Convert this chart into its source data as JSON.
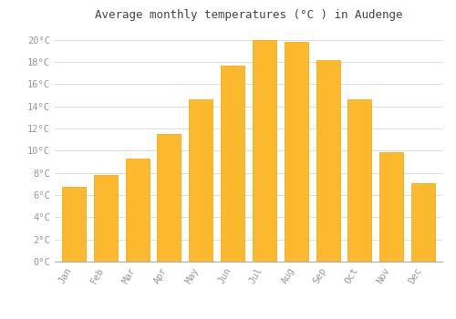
{
  "title": "Average monthly temperatures (°C ) in Audenge",
  "months": [
    "Jan",
    "Feb",
    "Mar",
    "Apr",
    "May",
    "Jun",
    "Jul",
    "Aug",
    "Sep",
    "Oct",
    "Nov",
    "Dec"
  ],
  "values": [
    6.7,
    7.8,
    9.3,
    11.5,
    14.6,
    17.7,
    20.0,
    19.8,
    18.2,
    14.6,
    9.9,
    7.1
  ],
  "bar_color": "#FDB92E",
  "bar_edge_color": "#F0A500",
  "background_color": "#FFFFFF",
  "grid_color": "#DDDDDD",
  "tick_label_color": "#999999",
  "title_color": "#444444",
  "ylim": [
    0,
    21
  ],
  "yticks": [
    0,
    2,
    4,
    6,
    8,
    10,
    12,
    14,
    16,
    18,
    20
  ],
  "bar_width": 0.75,
  "title_fontsize": 9,
  "tick_fontsize": 7.5
}
